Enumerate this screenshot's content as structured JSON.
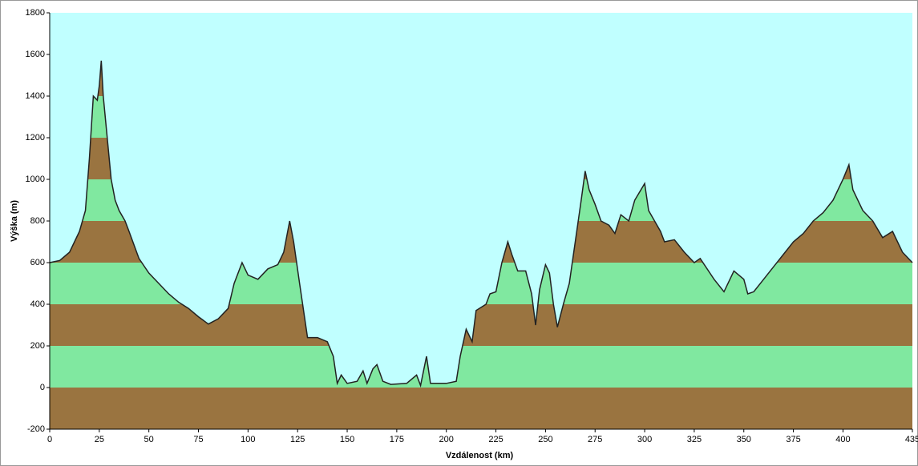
{
  "chart_data": {
    "type": "elevation-profile",
    "x_label": "Vzdálenost  (km)",
    "y_label": "Výška (m)",
    "xlim": [
      0,
      435
    ],
    "ylim": [
      -200,
      1800
    ],
    "xticks": [
      0,
      25,
      50,
      75,
      100,
      125,
      150,
      175,
      200,
      225,
      250,
      275,
      300,
      325,
      350,
      375,
      400,
      435
    ],
    "yticks": [
      -200,
      0,
      200,
      400,
      600,
      800,
      1000,
      1200,
      1400,
      1600,
      1800
    ],
    "band_colors": [
      "#9a7440",
      "#80e8a0"
    ],
    "background": "#c0ffff",
    "line_color": "#222222",
    "x": [
      0,
      5,
      10,
      15,
      18,
      20,
      22,
      24,
      25,
      26,
      27,
      29,
      31,
      33,
      35,
      38,
      40,
      45,
      50,
      55,
      60,
      65,
      70,
      75,
      80,
      85,
      90,
      93,
      97,
      100,
      105,
      110,
      115,
      118,
      121,
      123,
      126,
      130,
      135,
      140,
      143,
      145,
      147,
      150,
      155,
      158,
      160,
      163,
      165,
      168,
      172,
      180,
      185,
      187,
      190,
      192,
      200,
      205,
      207,
      210,
      213,
      215,
      220,
      222,
      225,
      228,
      231,
      233,
      236,
      240,
      243,
      245,
      247,
      250,
      252,
      254,
      256,
      259,
      262,
      265,
      268,
      270,
      272,
      275,
      278,
      282,
      285,
      288,
      292,
      295,
      300,
      302,
      305,
      308,
      310,
      315,
      320,
      325,
      328,
      335,
      340,
      345,
      350,
      352,
      355,
      360,
      365,
      370,
      375,
      380,
      385,
      390,
      395,
      400,
      403,
      405,
      410,
      415,
      420,
      425,
      430,
      435
    ],
    "values": [
      600,
      610,
      650,
      750,
      850,
      1100,
      1400,
      1380,
      1450,
      1570,
      1400,
      1200,
      1000,
      900,
      850,
      800,
      750,
      620,
      550,
      500,
      450,
      410,
      380,
      340,
      305,
      330,
      380,
      500,
      600,
      540,
      520,
      570,
      590,
      650,
      800,
      700,
      500,
      240,
      240,
      220,
      150,
      20,
      60,
      20,
      30,
      80,
      20,
      90,
      110,
      30,
      15,
      20,
      60,
      10,
      150,
      20,
      20,
      30,
      150,
      280,
      220,
      370,
      400,
      450,
      460,
      600,
      700,
      640,
      560,
      560,
      450,
      300,
      470,
      590,
      550,
      400,
      290,
      400,
      500,
      700,
      900,
      1040,
      950,
      880,
      800,
      780,
      740,
      830,
      800,
      900,
      980,
      850,
      800,
      750,
      700,
      710,
      650,
      600,
      620,
      520,
      460,
      560,
      520,
      450,
      460,
      520,
      580,
      640,
      700,
      740,
      800,
      840,
      900,
      1000,
      1070,
      950,
      850,
      800,
      720,
      750,
      650,
      600
    ]
  }
}
